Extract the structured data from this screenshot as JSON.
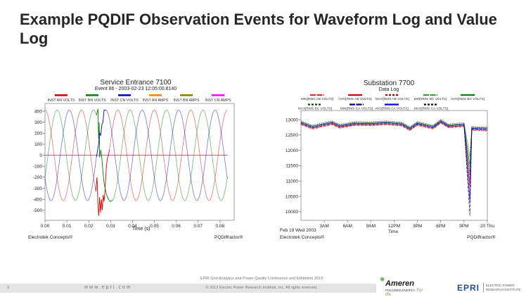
{
  "slide": {
    "title": "Example PQDIF Observation Events for Waveform Log and Value Log",
    "number": "3"
  },
  "footer": {
    "conference": "EPRI Grid Analytics and Power Quality Conference and Exhibition 2019",
    "website": "www.epri.com",
    "copyright": "© 2019 Electric Power Research Institute, Inc. All rights reserved.",
    "ameren_logo": "Ameren FOCUSED ENERGY. For life.",
    "epri_logo": "EPRI ELECTRIC POWER RESEARCH INSTITUTE"
  },
  "chart_data": [
    {
      "type": "line",
      "title": "Service Entrance 7100",
      "subtitle": "Event 86 - 2003-02-23 12:05:00.8140",
      "xlabel": "Time (s)",
      "ylabel": "",
      "xlim": [
        0,
        0.0865
      ],
      "ylim": [
        -590,
        470
      ],
      "xticks": [
        0.0,
        0.01,
        0.02,
        0.03,
        0.04,
        0.05,
        0.06,
        0.07,
        0.08
      ],
      "xtick_labels": [
        "0.00",
        "0.01",
        "0.02",
        "0.03",
        "0.04",
        "0.05",
        "0.06",
        "0.07",
        "0.08"
      ],
      "yticks": [
        400,
        300,
        200,
        100,
        0,
        -100,
        -200,
        -300,
        -400,
        -500
      ],
      "ytick_labels": [
        "400",
        "300",
        "200",
        "100",
        "0",
        "-100",
        "-200",
        "-300",
        "-400",
        "-500"
      ],
      "grid": false,
      "legend_placement": "top",
      "credit_left": "Electrotek Concepts®",
      "credit_right": "PQDiffractor®",
      "series": [
        {
          "name": "INST AN VOLTS",
          "color": "#d00000",
          "amplitude": 410,
          "frequency_hz": 60,
          "phase_deg": 0,
          "t_end": 0.0835,
          "event_points": [
            [
              0.0232,
              -330
            ],
            [
              0.0238,
              -200
            ],
            [
              0.0242,
              -450
            ],
            [
              0.0246,
              -550
            ],
            [
              0.025,
              -380
            ],
            [
              0.0254,
              -520
            ],
            [
              0.0258,
              -400
            ],
            [
              0.0262,
              -500
            ],
            [
              0.0266,
              -360
            ],
            [
              0.027,
              -420
            ],
            [
              0.0275,
              -300
            ],
            [
              0.028,
              -120
            ],
            [
              0.0285,
              -30
            ],
            [
              0.029,
              0
            ],
            [
              0.0295,
              50
            ]
          ]
        },
        {
          "name": "INST BN VOLTS",
          "color": "#008000",
          "amplitude": 410,
          "frequency_hz": 60,
          "phase_deg": -120,
          "t_end": 0.0835,
          "event_points": [
            [
              0.0235,
              363
            ],
            [
              0.0242,
              420
            ],
            [
              0.0245,
              150
            ],
            [
              0.0248,
              300
            ],
            [
              0.025,
              -20
            ],
            [
              0.0255,
              50
            ],
            [
              0.026,
              -30
            ],
            [
              0.0265,
              -150
            ],
            [
              0.027,
              -250
            ],
            [
              0.028,
              -350
            ],
            [
              0.029,
              -400
            ],
            [
              0.03,
              -420
            ],
            [
              0.031,
              -405
            ]
          ]
        },
        {
          "name": "INST CN VOLTS",
          "color": "#0000c0",
          "amplitude": 410,
          "frequency_hz": 60,
          "phase_deg": 120,
          "t_end": 0.0835,
          "event_points": [
            [
              0.0235,
              -17
            ],
            [
              0.0245,
              100
            ],
            [
              0.025,
              200
            ],
            [
              0.0255,
              180
            ],
            [
              0.026,
              280
            ],
            [
              0.0265,
              300
            ],
            [
              0.027,
              410
            ],
            [
              0.028,
              408
            ]
          ]
        },
        {
          "name": "INST AN AMPS",
          "color": "#ff8000",
          "amplitude": 0,
          "frequency_hz": 60,
          "phase_deg": 0,
          "t_end": 0.0835,
          "event_points": []
        },
        {
          "name": "INST BN AMPS",
          "color": "#808000",
          "amplitude": 0,
          "frequency_hz": 60,
          "phase_deg": 0,
          "t_end": 0.0835,
          "event_points": []
        },
        {
          "name": "INST CN AMPS",
          "color": "#ff00ff",
          "amplitude": 0,
          "frequency_hz": 60,
          "phase_deg": 0,
          "t_end": 0.0835,
          "event_points": []
        }
      ]
    },
    {
      "type": "line",
      "title": "Substation 7700",
      "subtitle": "Data Log",
      "xlabel": "Time",
      "x_date_label": "Feb 19 Wed 2003",
      "ylabel": "",
      "xlim": [
        "00:00",
        "24:00"
      ],
      "ylim": [
        9720,
        13300
      ],
      "xticks": [
        "03:00",
        "06:00",
        "09:00",
        "12:00",
        "15:00",
        "18:00",
        "21:00",
        "24:00"
      ],
      "xtick_labels": [
        "3AM",
        "6AM",
        "9AM",
        "12PM",
        "3PM",
        "6PM",
        "9PM",
        "20 Thu"
      ],
      "yticks": [
        13000,
        12500,
        12000,
        11500,
        11000,
        10500,
        10000
      ],
      "ytick_labels": [
        "13000",
        "12500",
        "12000",
        "11500",
        "11000",
        "10500",
        "10000"
      ],
      "grid": false,
      "legend_placement": "top",
      "credit_left": "Electrotek Concepts®",
      "credit_right": "PQDiffractor®",
      "x": [
        "00:00",
        "01:30",
        "03:00",
        "04:00",
        "05:00",
        "07:00",
        "09:00",
        "11:00",
        "13:00",
        "14:00",
        "15:00",
        "17:00",
        "18:00",
        "19:00",
        "21:00",
        "21:45",
        "22:00",
        "24:00"
      ],
      "series": [
        {
          "name": "MIN[RMS AB VOLTS]",
          "color": "#e03030",
          "dash": "long",
          "values": [
            12830,
            12690,
            12780,
            12830,
            12720,
            12810,
            12800,
            12830,
            12790,
            12640,
            12810,
            12690,
            12880,
            12730,
            12770,
            10500,
            12650,
            12630
          ]
        },
        {
          "name": "AVG[RMS AB VOLTS]",
          "color": "#d00000",
          "dash": "solid",
          "values": [
            12855,
            12715,
            12805,
            12855,
            12745,
            12835,
            12825,
            12855,
            12815,
            12665,
            12835,
            12715,
            12905,
            12755,
            12795,
            10800,
            12675,
            12655
          ]
        },
        {
          "name": "MAX[RMS AB VOLTS]",
          "color": "#a00000",
          "dash": "short",
          "values": [
            12880,
            12740,
            12830,
            12880,
            12770,
            12860,
            12850,
            12880,
            12840,
            12690,
            12860,
            12740,
            12930,
            12780,
            12820,
            11200,
            12700,
            12680
          ]
        },
        {
          "name": "MIN[RMS BC VOLTS]",
          "color": "#30a030",
          "dash": "long",
          "values": [
            12900,
            12760,
            12850,
            12900,
            12790,
            12880,
            12870,
            12900,
            12860,
            12710,
            12880,
            12760,
            12950,
            12800,
            12840,
            11300,
            12720,
            12700
          ]
        },
        {
          "name": "AVG[RMS BC VOLTS]",
          "color": "#008000",
          "dash": "solid",
          "values": [
            12925,
            12785,
            12875,
            12925,
            12815,
            12905,
            12895,
            12925,
            12885,
            12735,
            12905,
            12785,
            12975,
            12825,
            12865,
            11500,
            12745,
            12725
          ]
        },
        {
          "name": "MAX[RMS BC VOLTS]",
          "color": "#1a3a1a",
          "dash": "short",
          "values": [
            12960,
            12820,
            12910,
            12960,
            12850,
            12940,
            12930,
            12960,
            12920,
            12770,
            12940,
            12820,
            13010,
            12860,
            12900,
            11800,
            12780,
            12760
          ]
        },
        {
          "name": "MIN[RMS CA VOLTS]",
          "color": "#000080",
          "dash": "long",
          "values": [
            12870,
            12730,
            12820,
            12870,
            12760,
            12850,
            12840,
            12870,
            12830,
            12680,
            12850,
            12730,
            12920,
            12770,
            12810,
            9870,
            12690,
            12670
          ]
        },
        {
          "name": "AVG[RMS CA VOLTS]",
          "color": "#0000e0",
          "dash": "solid",
          "values": [
            12900,
            12760,
            12850,
            12900,
            12790,
            12880,
            12870,
            12900,
            12860,
            12710,
            12880,
            12760,
            12950,
            12800,
            12840,
            10300,
            12720,
            12700
          ]
        },
        {
          "name": "MAX[RMS CA VOLTS]",
          "color": "#000060",
          "dash": "short",
          "values": [
            12930,
            12790,
            12880,
            12930,
            12820,
            12910,
            12900,
            12930,
            12890,
            12740,
            12910,
            12790,
            12980,
            12830,
            12870,
            11000,
            12750,
            12730
          ]
        }
      ]
    }
  ]
}
